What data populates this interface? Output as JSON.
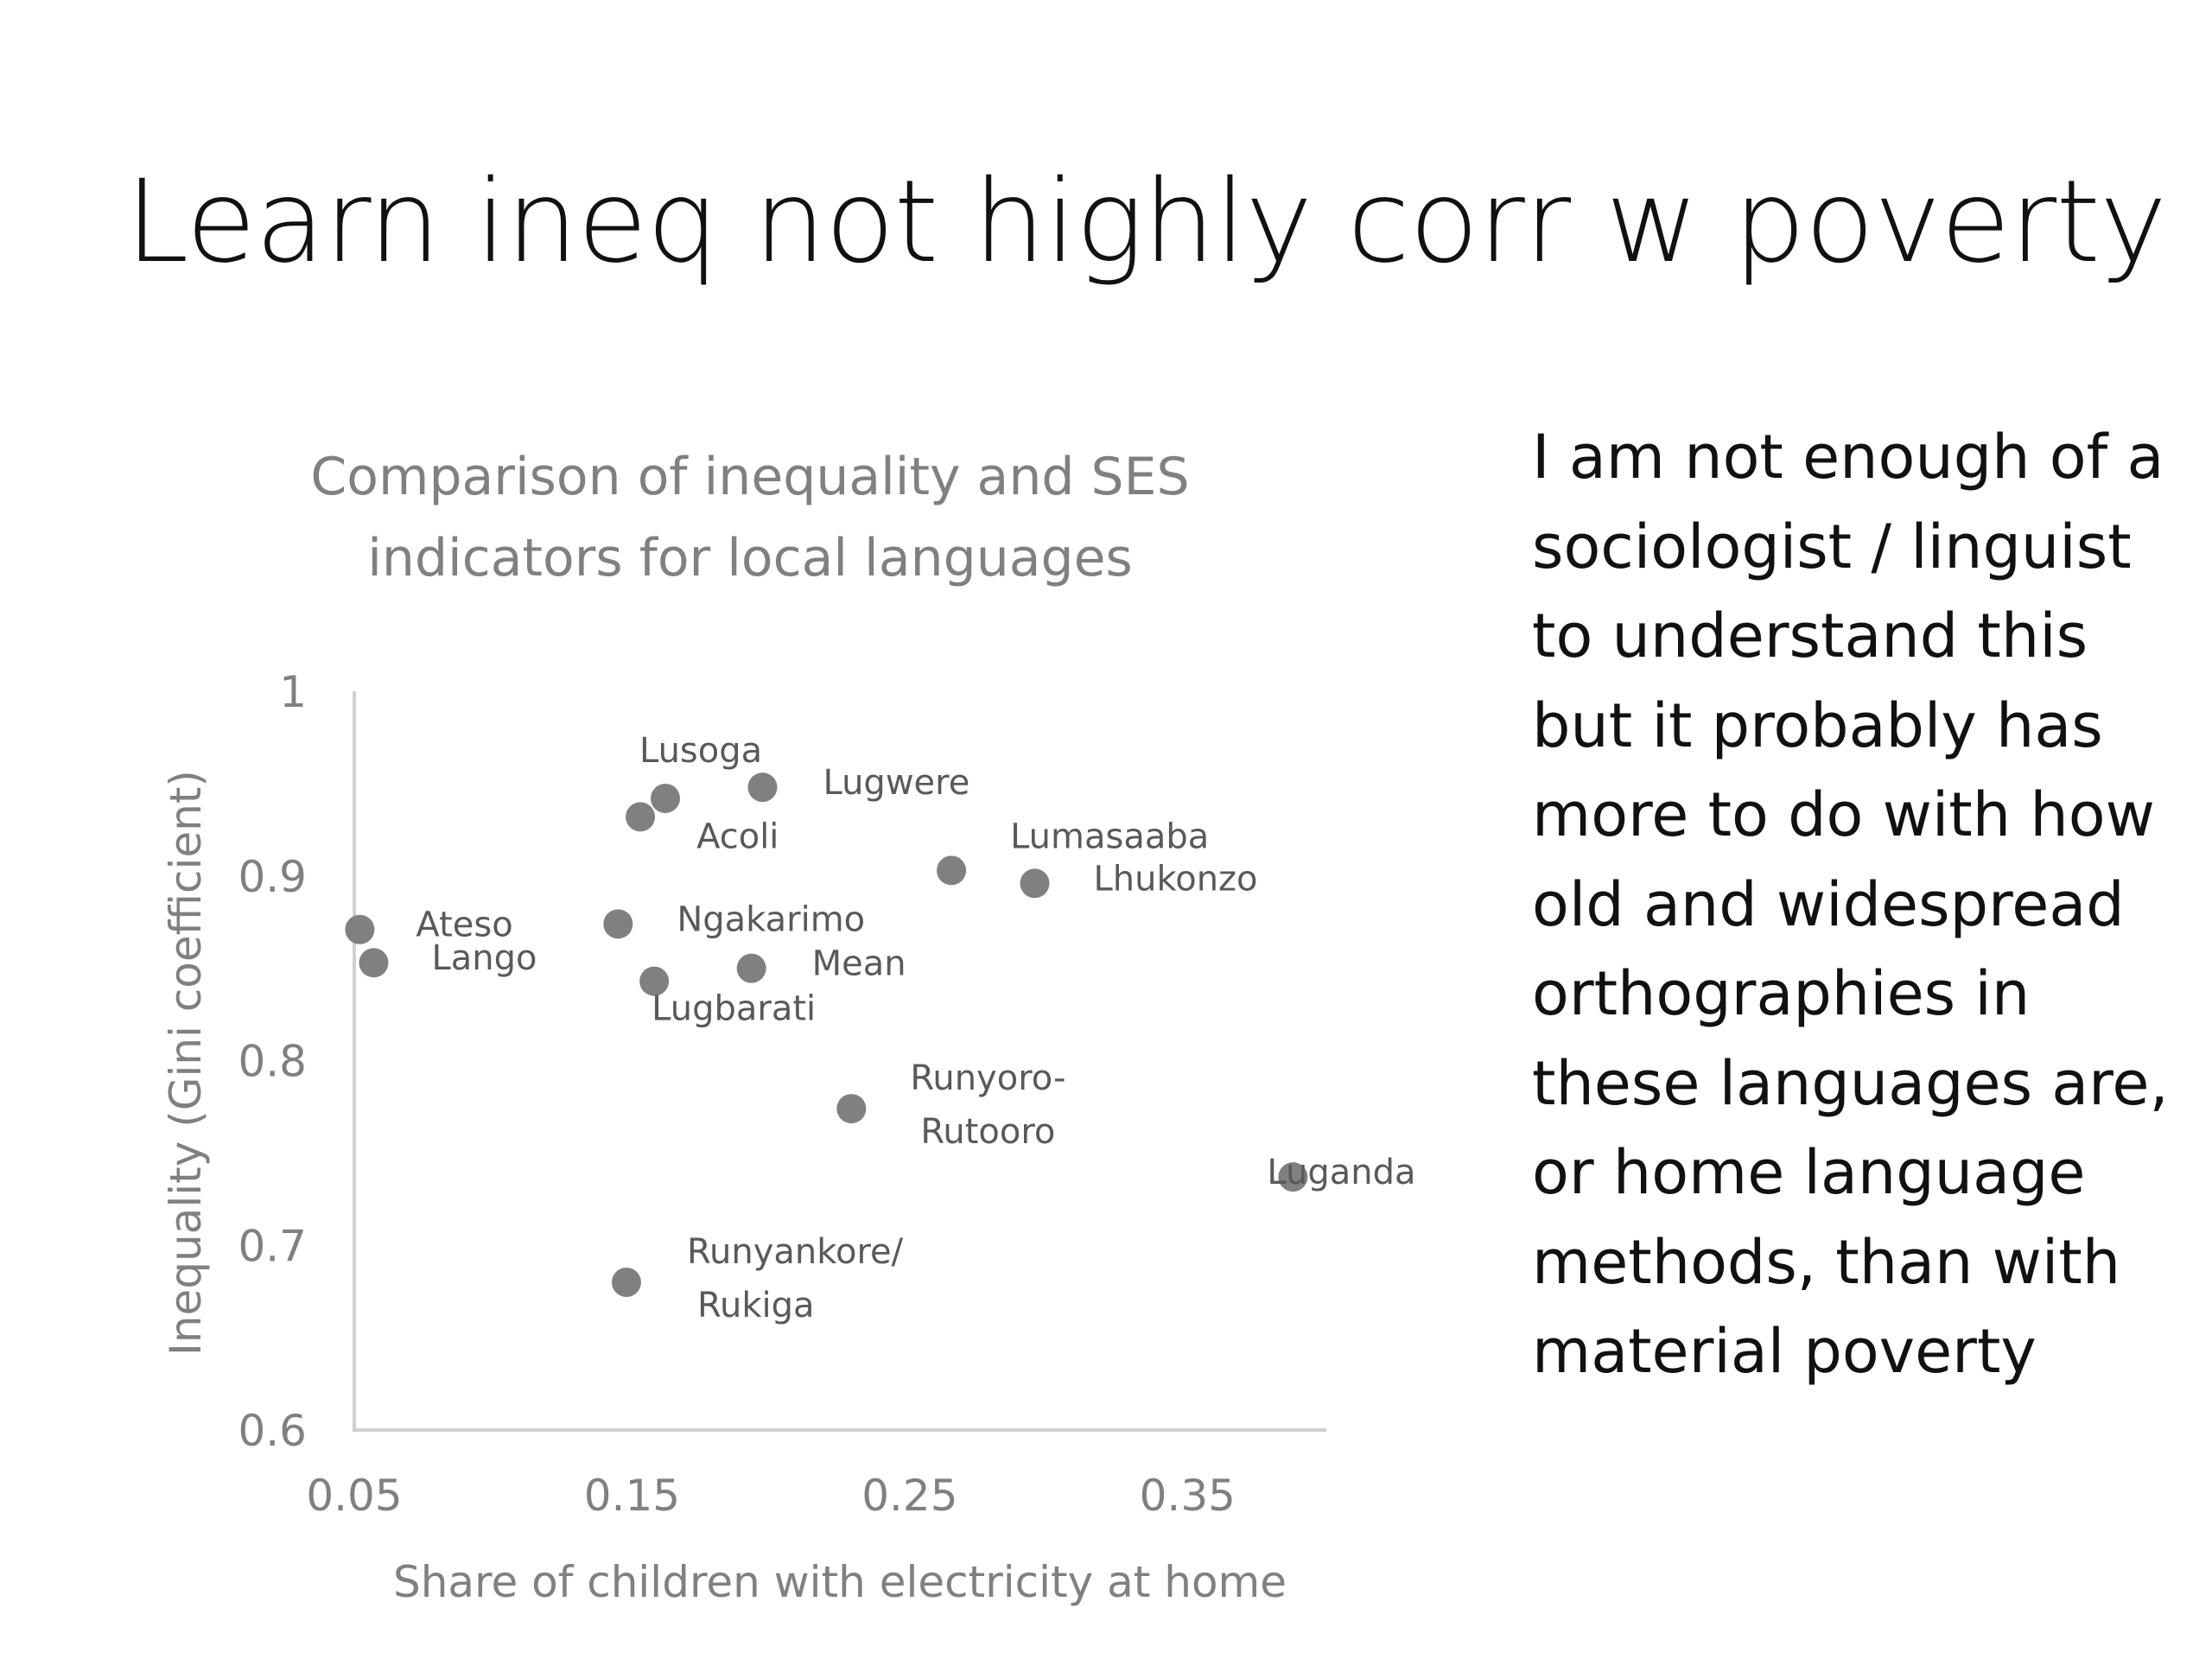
{
  "slide": {
    "title": "Learn ineq not highly corr w poverty",
    "body_lines": [
      "I am not enough of a",
      "sociologist / linguist",
      "to understand this",
      "but it probably has",
      "more to do with how",
      "old and widespread",
      "orthographies in",
      "these languages are,",
      "or home language",
      "methods, than with",
      "material poverty"
    ]
  },
  "colors": {
    "point": "#808080",
    "axis": "#d0d0d0",
    "title_text": "#808080",
    "label_text": "#595959"
  },
  "chart_data": {
    "type": "scatter",
    "title_lines": [
      "Comparison of inequality and SES",
      "indicators for local languages"
    ],
    "xlabel": "Share of children with electricity at home",
    "ylabel": "Inequality (Gini coefficient)",
    "xlim": [
      0.05,
      0.4
    ],
    "ylim": [
      0.6,
      1.0
    ],
    "xticks": [
      "0.05",
      "0.15",
      "0.25",
      "0.35"
    ],
    "yticks": [
      "0.6",
      "0.7",
      "0.8",
      "0.9",
      "1"
    ],
    "grid": false,
    "legend": "none",
    "points": [
      {
        "label": [
          "Lusoga"
        ],
        "x": 0.162,
        "y": 0.942
      },
      {
        "label": [
          "Lugwere"
        ],
        "x": 0.197,
        "y": 0.948
      },
      {
        "label": [
          "Acoli"
        ],
        "x": 0.153,
        "y": 0.932
      },
      {
        "label": [
          "Lumasaaba"
        ],
        "x": 0.265,
        "y": 0.903
      },
      {
        "label": [
          "Lhukonzo"
        ],
        "x": 0.295,
        "y": 0.896
      },
      {
        "label": [
          "Ateso"
        ],
        "x": 0.052,
        "y": 0.871
      },
      {
        "label": [
          "Lango"
        ],
        "x": 0.057,
        "y": 0.853
      },
      {
        "label": [
          "Ngakarimo"
        ],
        "x": 0.145,
        "y": 0.874
      },
      {
        "label": [
          "Lugbarati"
        ],
        "x": 0.158,
        "y": 0.843
      },
      {
        "label": [
          "Mean"
        ],
        "x": 0.193,
        "y": 0.85
      },
      {
        "label": [
          "Runyoro-",
          "Rutooro"
        ],
        "x": 0.229,
        "y": 0.774
      },
      {
        "label": [
          "Luganda"
        ],
        "x": 0.388,
        "y": 0.737
      },
      {
        "label": [
          "Runyankore/",
          "Rukiga"
        ],
        "x": 0.148,
        "y": 0.68
      }
    ]
  }
}
